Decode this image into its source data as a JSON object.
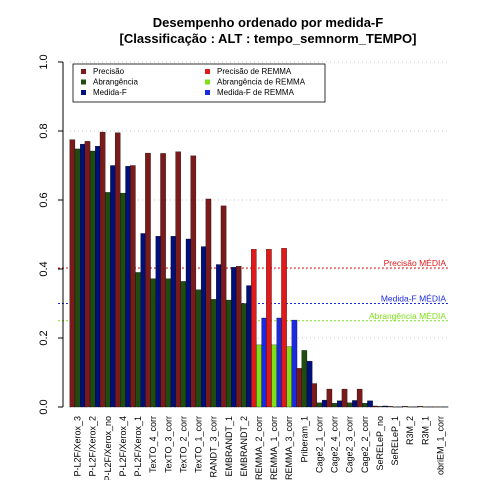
{
  "chart_data": {
    "type": "bar",
    "title_line1": "Desempenho ordenado por medida-F",
    "title_line2": "[Classificação : ALT : tempo_semnorm_TEMPO]",
    "xlabel": "",
    "ylabel": "",
    "ylim": [
      0,
      1.0
    ],
    "yticks": [
      "0.0",
      "0.2",
      "0.4",
      "0.6",
      "0.8",
      "1.0"
    ],
    "categories": [
      "P-L2F/Xerox_3",
      "P-L2F/Xerox_2",
      "P-L2F/Xerox_no",
      "P-L2F/Xerox_4",
      "P-L2F/Xerox_1",
      "TexTO_4_corr",
      "TexTO_3_corr",
      "TexTO_2_corr",
      "TexTO_1_corr",
      "RANDT_3_corr",
      "EMBRANDT_1",
      "EMBRANDT_2",
      "REMMA_2_corr",
      "REMMA_1_corr",
      "REMMA_3_corr",
      "Priberam_1",
      "Cage2_1_corr",
      "Cage2_4_corr",
      "Cage2_3_corr",
      "Cage2_2_corr",
      "SeRELeP_no",
      "SeRELeP_1",
      "R3M_2",
      "R3M_1",
      "obriEM_1_corr"
    ],
    "series": [
      {
        "name": "Precisão",
        "values": [
          0.775,
          0.77,
          0.797,
          0.795,
          0.7,
          0.736,
          0.735,
          0.74,
          0.728,
          0.603,
          0.583,
          0.408,
          0.457,
          0.457,
          0.46,
          0.112,
          0.068,
          0.052,
          0.052,
          0.052,
          0.003,
          0.002,
          0.002,
          0.002,
          0.001
        ]
      },
      {
        "name": "Abrangência",
        "values": [
          0.748,
          0.742,
          0.622,
          0.62,
          0.39,
          0.372,
          0.372,
          0.364,
          0.34,
          0.312,
          0.31,
          0.3,
          0.18,
          0.18,
          0.175,
          0.164,
          0.012,
          0.011,
          0.012,
          0.011,
          0.002,
          0.001,
          0.001,
          0.001,
          0.001
        ]
      },
      {
        "name": "Medida-F",
        "values": [
          0.762,
          0.756,
          0.7,
          0.698,
          0.503,
          0.495,
          0.495,
          0.487,
          0.465,
          0.413,
          0.405,
          0.352,
          0.258,
          0.258,
          0.252,
          0.133,
          0.02,
          0.018,
          0.019,
          0.018,
          0.003,
          0.001,
          0.001,
          0.001,
          0.001
        ]
      }
    ],
    "highlighted_categories": [
      "REMMA_2_corr",
      "REMMA_1_corr",
      "REMMA_3_corr"
    ],
    "legend": {
      "placement": "top-left",
      "entries": [
        {
          "label": "Precisão",
          "color": "#7a1a1a"
        },
        {
          "label": "Abrangência",
          "color": "#1e4d0f"
        },
        {
          "label": "Medida-F",
          "color": "#00107a"
        },
        {
          "label": "Precisão de REMMA",
          "color": "#e01a1a"
        },
        {
          "label": "Abrangência de REMMA",
          "color": "#7fe01a"
        },
        {
          "label": "Medida-F de REMMA",
          "color": "#1a2ae0"
        }
      ]
    },
    "reference_lines": [
      {
        "name": "Precisão MÉDIA",
        "value": 0.403,
        "color": "#e01a1a"
      },
      {
        "name": "Medida-F MÉDIA",
        "value": 0.3,
        "color": "#1a2ae0"
      },
      {
        "name": "Abrangência MÉDIA",
        "value": 0.25,
        "color": "#7fe01a"
      }
    ],
    "colors": {
      "normal": [
        "#7a1a1a",
        "#1e4d0f",
        "#00107a"
      ],
      "highlight": [
        "#e01a1a",
        "#7fe01a",
        "#1a2ae0"
      ],
      "grid": "#bbbbbb"
    },
    "grid": true
  }
}
